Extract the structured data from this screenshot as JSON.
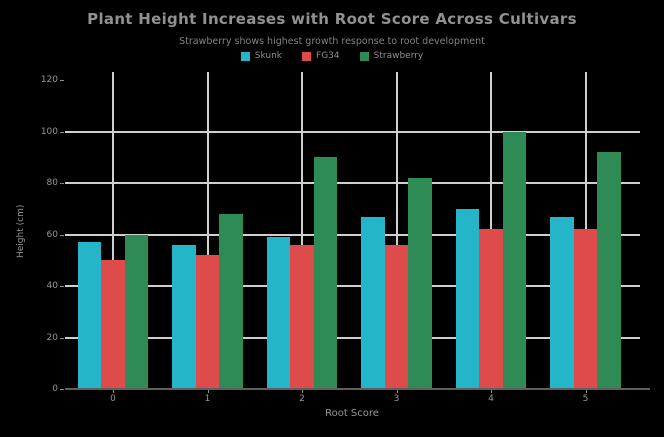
{
  "header": {
    "title": "Plant Height Increases with Root Score Across Cultivars",
    "subtitle": "Strawberry shows highest growth response to root development"
  },
  "chart_data": {
    "type": "bar",
    "categories": [
      "0",
      "1",
      "2",
      "3",
      "4",
      "5"
    ],
    "series": [
      {
        "name": "Skunk",
        "color": "#25b5c9",
        "values": [
          57,
          56,
          59,
          67,
          70,
          67
        ]
      },
      {
        "name": "FG34",
        "color": "#dd4b4b",
        "values": [
          50,
          52,
          56,
          56,
          62,
          62
        ]
      },
      {
        "name": "Strawberry",
        "color": "#2f8b55",
        "values": [
          60,
          68,
          90,
          82,
          100,
          92
        ]
      }
    ],
    "title": "Plant Height Increases with Root Score Across Cultivars",
    "subtitle": "Strawberry shows highest growth response to root development",
    "xlabel": "Root Score",
    "ylabel": "Height (cm)",
    "yticks": [
      0,
      20,
      40,
      60,
      80,
      100,
      120
    ],
    "ylim": [
      0,
      123
    ],
    "grid": true,
    "legend_position": "top-center",
    "background_color": "#000000",
    "gridline_color": "#cfcfcf",
    "text_color": "#969696"
  }
}
